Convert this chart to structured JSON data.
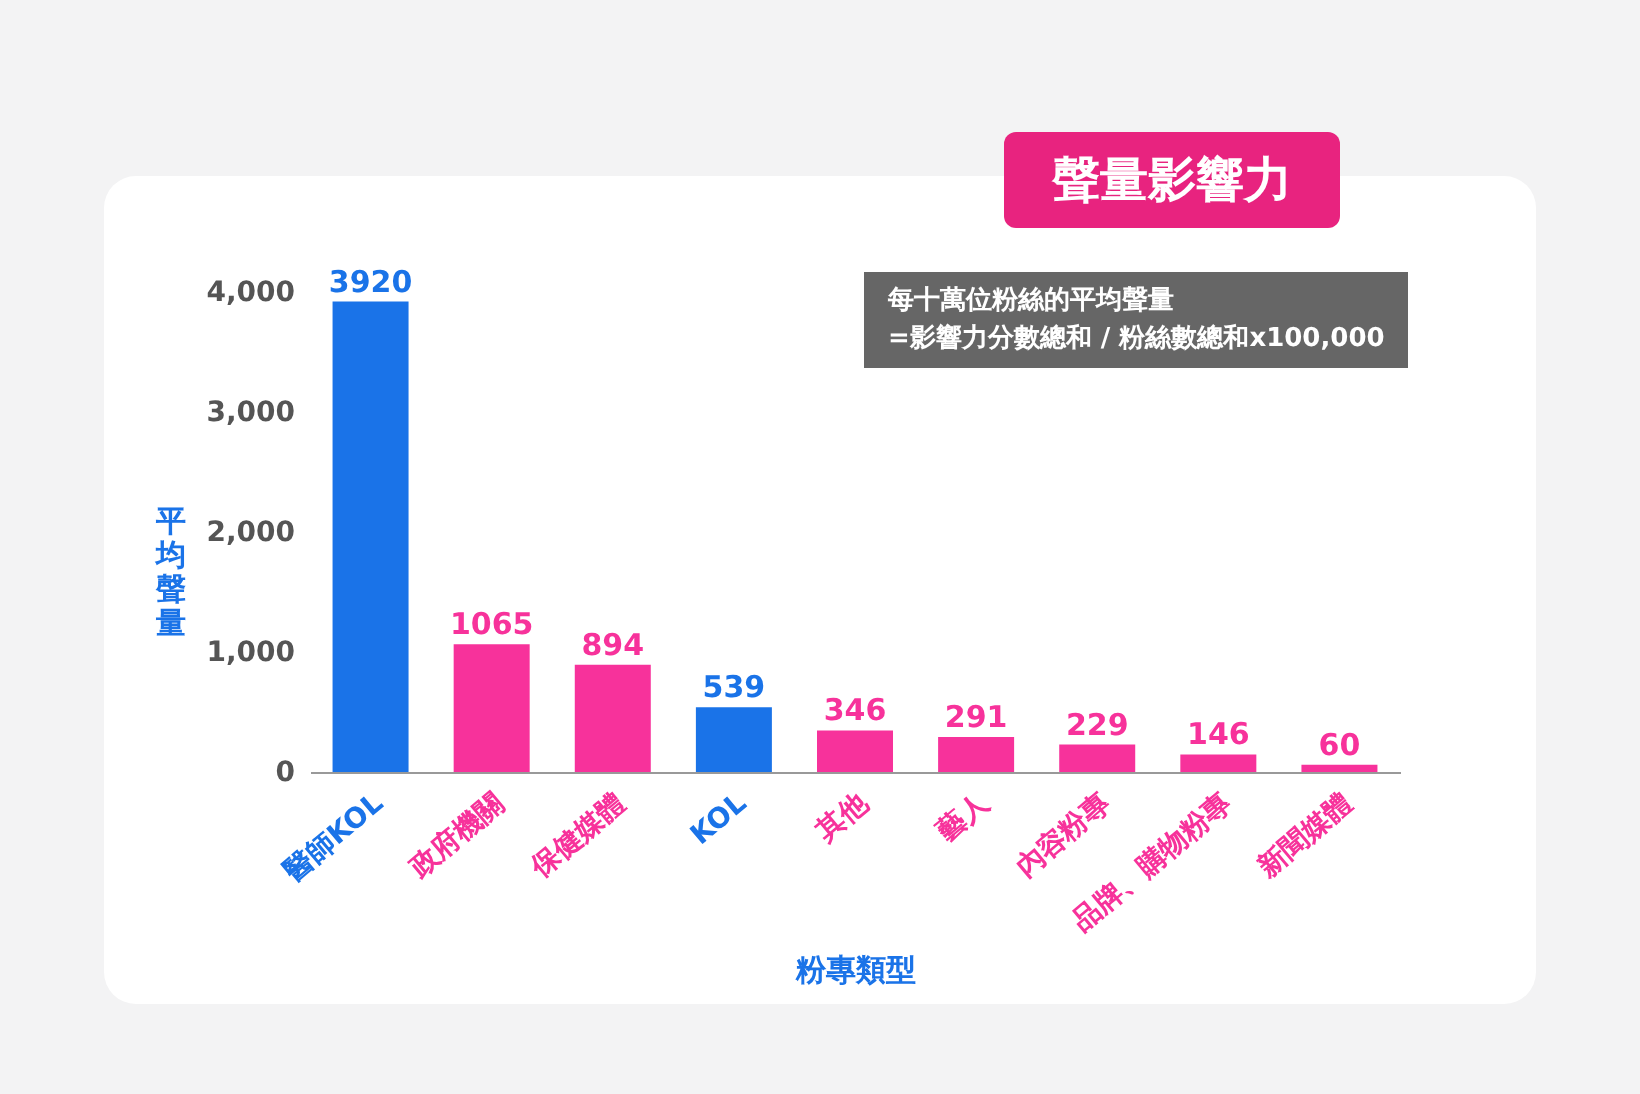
{
  "chart_data": {
    "type": "bar",
    "title": "聲量影響力",
    "xlabel": "粉專類型",
    "ylabel": "平均聲量",
    "categories": [
      "醫師KOL",
      "政府機關",
      "保健媒體",
      "KOL",
      "其他",
      "藝人",
      "內容粉專",
      "品牌、購物粉專",
      "新聞媒體"
    ],
    "values": [
      3920,
      1065,
      894,
      539,
      346,
      291,
      229,
      146,
      60
    ],
    "colors": [
      "#1a73e8",
      "#f7329b",
      "#f7329b",
      "#1a73e8",
      "#f7329b",
      "#f7329b",
      "#f7329b",
      "#f7329b",
      "#f7329b"
    ],
    "ylim": [
      0,
      4200
    ],
    "yticks": [
      0,
      {
        "value": 1000,
        "label": "1,000"
      },
      {
        "value": 2000,
        "label": "2,000"
      },
      {
        "value": 3000,
        "label": "3,000"
      },
      {
        "value": 4000,
        "label": "4,000"
      }
    ],
    "data_labels": true,
    "grid": false,
    "legend": false,
    "annotations": [
      "每十萬位粉絲的平均聲量",
      "=影響力分數總和 / 粉絲數總和x100,000"
    ]
  }
}
